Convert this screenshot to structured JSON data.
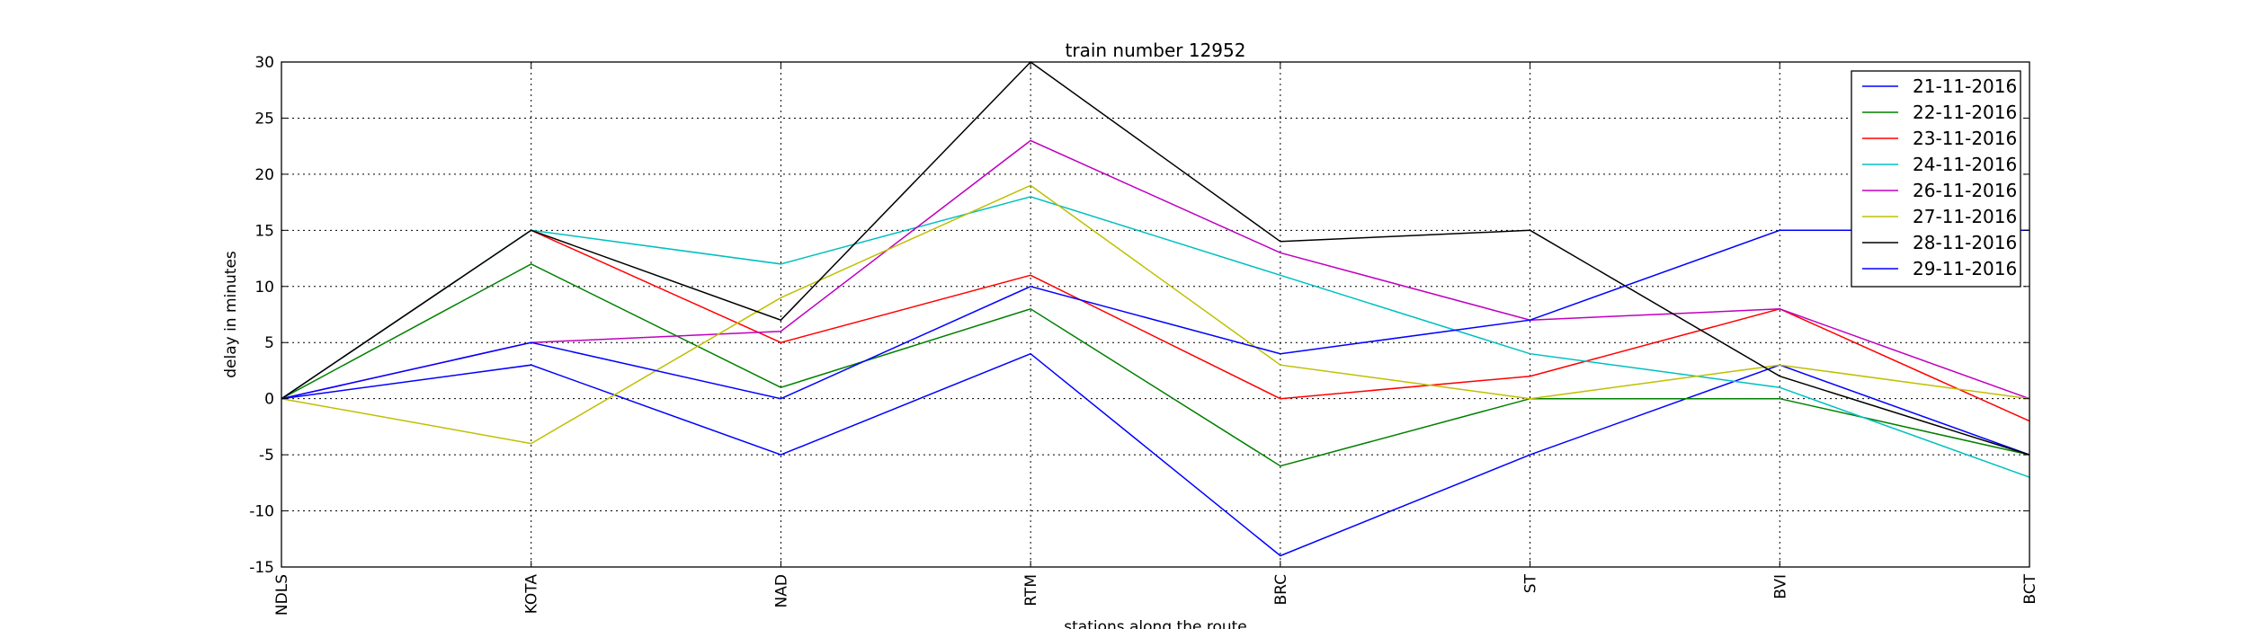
{
  "chart_data": {
    "type": "line",
    "title": "train number 12952",
    "xlabel": "stations along the route",
    "ylabel": "delay in minutes",
    "categories": [
      "NDLS",
      "KOTA",
      "NAD",
      "RTM",
      "BRC",
      "ST",
      "BVI",
      "BCT"
    ],
    "ylim": [
      -15,
      30
    ],
    "yticks": [
      -15,
      -10,
      -5,
      0,
      5,
      10,
      15,
      20,
      25,
      30
    ],
    "grid": true,
    "legend_position": "top-right",
    "series": [
      {
        "name": "21-11-2016",
        "color": "#0000ff",
        "values": [
          0,
          3,
          -5,
          4,
          -14,
          -5,
          3,
          -5
        ]
      },
      {
        "name": "22-11-2016",
        "color": "#008000",
        "values": [
          0,
          12,
          1,
          8,
          -6,
          0,
          0,
          -5
        ]
      },
      {
        "name": "23-11-2016",
        "color": "#ff0000",
        "values": [
          0,
          15,
          5,
          11,
          0,
          2,
          8,
          -2
        ]
      },
      {
        "name": "24-11-2016",
        "color": "#00bfbf",
        "values": [
          0,
          15,
          12,
          18,
          11,
          4,
          1,
          -7
        ]
      },
      {
        "name": "26-11-2016",
        "color": "#bf00bf",
        "values": [
          0,
          5,
          6,
          23,
          13,
          7,
          8,
          0
        ]
      },
      {
        "name": "27-11-2016",
        "color": "#bfbf00",
        "values": [
          0,
          -4,
          9,
          19,
          3,
          0,
          3,
          0
        ]
      },
      {
        "name": "28-11-2016",
        "color": "#000000",
        "values": [
          0,
          15,
          7,
          30,
          14,
          15,
          2,
          -5
        ]
      },
      {
        "name": "29-11-2016",
        "color": "#0000ff",
        "values": [
          0,
          5,
          0,
          10,
          4,
          7,
          15,
          15
        ]
      }
    ]
  }
}
